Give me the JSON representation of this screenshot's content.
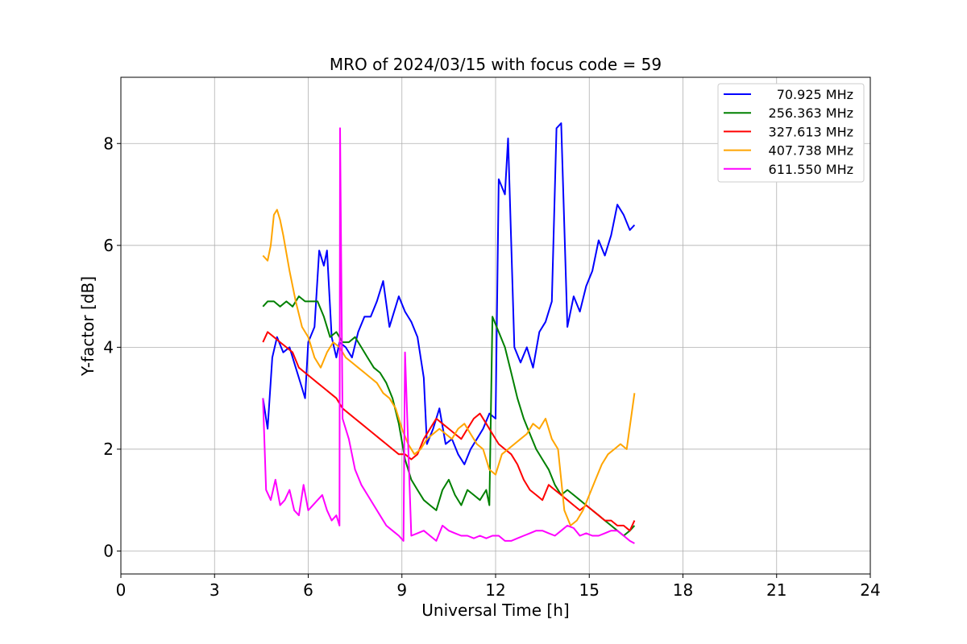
{
  "chart_data": {
    "type": "line",
    "title": "MRO of 2024/03/15 with focus code = 59",
    "xlabel": "Universal Time [h]",
    "ylabel": "Y-factor [dB]",
    "xlim": [
      0,
      24
    ],
    "ylim": [
      -0.45,
      9.3
    ],
    "xticks": [
      0,
      3,
      6,
      9,
      12,
      15,
      18,
      21,
      24
    ],
    "yticks": [
      0,
      2,
      4,
      6,
      8
    ],
    "grid": true,
    "legend_position": "top-right",
    "series": [
      {
        "name": "70.925 MHz",
        "color": "#0000ff",
        "x": [
          4.55,
          4.7,
          4.85,
          5.0,
          5.2,
          5.4,
          5.6,
          5.8,
          5.9,
          6.0,
          6.2,
          6.35,
          6.5,
          6.6,
          6.75,
          6.9,
          7.0,
          7.2,
          7.4,
          7.6,
          7.8,
          8.0,
          8.2,
          8.4,
          8.6,
          8.75,
          8.9,
          9.1,
          9.3,
          9.5,
          9.7,
          9.8,
          10.0,
          10.2,
          10.4,
          10.6,
          10.8,
          11.0,
          11.2,
          11.4,
          11.6,
          11.8,
          12.0,
          12.1,
          12.3,
          12.4,
          12.6,
          12.8,
          13.0,
          13.2,
          13.4,
          13.6,
          13.8,
          13.95,
          14.1,
          14.3,
          14.5,
          14.7,
          14.9,
          15.1,
          15.3,
          15.5,
          15.7,
          15.9,
          16.1,
          16.3,
          16.45
        ],
        "values": [
          3.0,
          2.4,
          3.8,
          4.2,
          3.9,
          4.0,
          3.6,
          3.2,
          3.0,
          4.1,
          4.4,
          5.9,
          5.6,
          5.9,
          4.2,
          3.8,
          4.1,
          4.0,
          3.8,
          4.3,
          4.6,
          4.6,
          4.9,
          5.3,
          4.4,
          4.7,
          5.0,
          4.7,
          4.5,
          4.2,
          3.4,
          2.1,
          2.4,
          2.8,
          2.1,
          2.2,
          1.9,
          1.7,
          2.0,
          2.2,
          2.4,
          2.7,
          2.6,
          7.3,
          7.0,
          8.1,
          4.0,
          3.7,
          4.0,
          3.6,
          4.3,
          4.5,
          4.9,
          8.3,
          8.4,
          4.4,
          5.0,
          4.7,
          5.2,
          5.5,
          6.1,
          5.8,
          6.2,
          6.8,
          6.6,
          6.3,
          6.4
        ]
      },
      {
        "name": "256.363 MHz",
        "color": "#008000",
        "x": [
          4.55,
          4.7,
          4.9,
          5.1,
          5.3,
          5.5,
          5.7,
          5.9,
          6.1,
          6.3,
          6.5,
          6.7,
          6.9,
          7.1,
          7.3,
          7.5,
          7.7,
          7.9,
          8.1,
          8.3,
          8.5,
          8.7,
          8.9,
          9.1,
          9.3,
          9.5,
          9.7,
          9.9,
          10.1,
          10.3,
          10.5,
          10.7,
          10.9,
          11.1,
          11.3,
          11.5,
          11.7,
          11.8,
          11.9,
          12.1,
          12.3,
          12.5,
          12.7,
          12.9,
          13.1,
          13.3,
          13.5,
          13.7,
          13.9,
          14.1,
          14.3,
          14.5,
          14.7,
          14.9,
          15.1,
          15.3,
          15.5,
          15.7,
          15.9,
          16.1,
          16.3,
          16.45
        ],
        "values": [
          4.8,
          4.9,
          4.9,
          4.8,
          4.9,
          4.8,
          5.0,
          4.9,
          4.9,
          4.9,
          4.6,
          4.2,
          4.3,
          4.1,
          4.1,
          4.2,
          4.0,
          3.8,
          3.6,
          3.5,
          3.3,
          3.0,
          2.5,
          1.8,
          1.4,
          1.2,
          1.0,
          0.9,
          0.8,
          1.2,
          1.4,
          1.1,
          0.9,
          1.2,
          1.1,
          1.0,
          1.2,
          0.9,
          4.6,
          4.3,
          4.0,
          3.5,
          3.0,
          2.6,
          2.3,
          2.0,
          1.8,
          1.6,
          1.3,
          1.1,
          1.2,
          1.1,
          1.0,
          0.9,
          0.8,
          0.7,
          0.6,
          0.5,
          0.4,
          0.3,
          0.4,
          0.5
        ]
      },
      {
        "name": "327.613 MHz",
        "color": "#ff0000",
        "x": [
          4.55,
          4.7,
          4.9,
          5.1,
          5.3,
          5.5,
          5.7,
          5.9,
          6.1,
          6.3,
          6.5,
          6.7,
          6.9,
          7.1,
          7.3,
          7.5,
          7.7,
          7.9,
          8.1,
          8.3,
          8.5,
          8.7,
          8.9,
          9.1,
          9.3,
          9.5,
          9.7,
          9.9,
          10.1,
          10.3,
          10.5,
          10.7,
          10.9,
          11.1,
          11.3,
          11.5,
          11.7,
          11.9,
          12.1,
          12.3,
          12.5,
          12.7,
          12.9,
          13.1,
          13.3,
          13.5,
          13.7,
          13.9,
          14.1,
          14.3,
          14.5,
          14.7,
          14.9,
          15.1,
          15.3,
          15.5,
          15.7,
          15.9,
          16.1,
          16.3,
          16.45
        ],
        "values": [
          4.1,
          4.3,
          4.2,
          4.1,
          4.0,
          3.9,
          3.6,
          3.5,
          3.4,
          3.3,
          3.2,
          3.1,
          3.0,
          2.8,
          2.7,
          2.6,
          2.5,
          2.4,
          2.3,
          2.2,
          2.1,
          2.0,
          1.9,
          1.9,
          1.8,
          1.9,
          2.2,
          2.4,
          2.6,
          2.5,
          2.4,
          2.3,
          2.2,
          2.4,
          2.6,
          2.7,
          2.5,
          2.3,
          2.1,
          2.0,
          1.9,
          1.7,
          1.4,
          1.2,
          1.1,
          1.0,
          1.3,
          1.2,
          1.1,
          1.0,
          0.9,
          0.8,
          0.9,
          0.8,
          0.7,
          0.6,
          0.6,
          0.5,
          0.5,
          0.4,
          0.6
        ]
      },
      {
        "name": "407.738 MHz",
        "color": "#ffa500",
        "x": [
          4.55,
          4.7,
          4.8,
          4.9,
          5.0,
          5.1,
          5.2,
          5.4,
          5.6,
          5.8,
          6.0,
          6.2,
          6.4,
          6.6,
          6.8,
          7.0,
          7.2,
          7.4,
          7.6,
          7.8,
          8.0,
          8.2,
          8.4,
          8.6,
          8.8,
          9.0,
          9.2,
          9.4,
          9.6,
          9.8,
          10.0,
          10.2,
          10.4,
          10.6,
          10.8,
          11.0,
          11.2,
          11.4,
          11.6,
          11.8,
          12.0,
          12.2,
          12.4,
          12.6,
          12.8,
          13.0,
          13.2,
          13.4,
          13.6,
          13.8,
          14.0,
          14.2,
          14.4,
          14.6,
          14.8,
          15.0,
          15.2,
          15.4,
          15.6,
          15.8,
          16.0,
          16.2,
          16.45
        ],
        "values": [
          5.8,
          5.7,
          6.0,
          6.6,
          6.7,
          6.5,
          6.2,
          5.5,
          4.9,
          4.4,
          4.2,
          3.8,
          3.6,
          3.9,
          4.1,
          4.0,
          3.8,
          3.7,
          3.6,
          3.5,
          3.4,
          3.3,
          3.1,
          3.0,
          2.8,
          2.4,
          2.1,
          1.9,
          2.0,
          2.2,
          2.3,
          2.4,
          2.3,
          2.2,
          2.4,
          2.5,
          2.3,
          2.1,
          2.0,
          1.6,
          1.5,
          1.9,
          2.0,
          2.1,
          2.2,
          2.3,
          2.5,
          2.4,
          2.6,
          2.2,
          2.0,
          0.8,
          0.5,
          0.6,
          0.8,
          1.1,
          1.4,
          1.7,
          1.9,
          2.0,
          2.1,
          2.0,
          3.1
        ]
      },
      {
        "name": "611.550 MHz",
        "color": "#ff00ff",
        "x": [
          4.55,
          4.65,
          4.8,
          4.95,
          5.1,
          5.25,
          5.4,
          5.55,
          5.7,
          5.85,
          6.0,
          6.15,
          6.3,
          6.45,
          6.6,
          6.75,
          6.9,
          7.0,
          7.02,
          7.1,
          7.3,
          7.5,
          7.7,
          7.9,
          8.1,
          8.3,
          8.5,
          8.7,
          8.9,
          9.05,
          9.1,
          9.3,
          9.5,
          9.7,
          9.9,
          10.1,
          10.3,
          10.5,
          10.7,
          10.9,
          11.1,
          11.3,
          11.5,
          11.7,
          11.9,
          12.1,
          12.3,
          12.5,
          12.7,
          12.9,
          13.1,
          13.3,
          13.5,
          13.7,
          13.9,
          14.1,
          14.3,
          14.5,
          14.7,
          14.9,
          15.1,
          15.3,
          15.5,
          15.7,
          15.9,
          16.1,
          16.3,
          16.45
        ],
        "values": [
          3.0,
          1.2,
          1.0,
          1.4,
          0.9,
          1.0,
          1.2,
          0.8,
          0.7,
          1.3,
          0.8,
          0.9,
          1.0,
          1.1,
          0.8,
          0.6,
          0.7,
          0.5,
          8.3,
          2.6,
          2.2,
          1.6,
          1.3,
          1.1,
          0.9,
          0.7,
          0.5,
          0.4,
          0.3,
          0.2,
          3.9,
          0.3,
          0.35,
          0.4,
          0.3,
          0.2,
          0.5,
          0.4,
          0.35,
          0.3,
          0.3,
          0.25,
          0.3,
          0.25,
          0.3,
          0.3,
          0.2,
          0.2,
          0.25,
          0.3,
          0.35,
          0.4,
          0.4,
          0.35,
          0.3,
          0.4,
          0.5,
          0.45,
          0.3,
          0.35,
          0.3,
          0.3,
          0.35,
          0.4,
          0.4,
          0.3,
          0.2,
          0.15
        ]
      }
    ]
  }
}
